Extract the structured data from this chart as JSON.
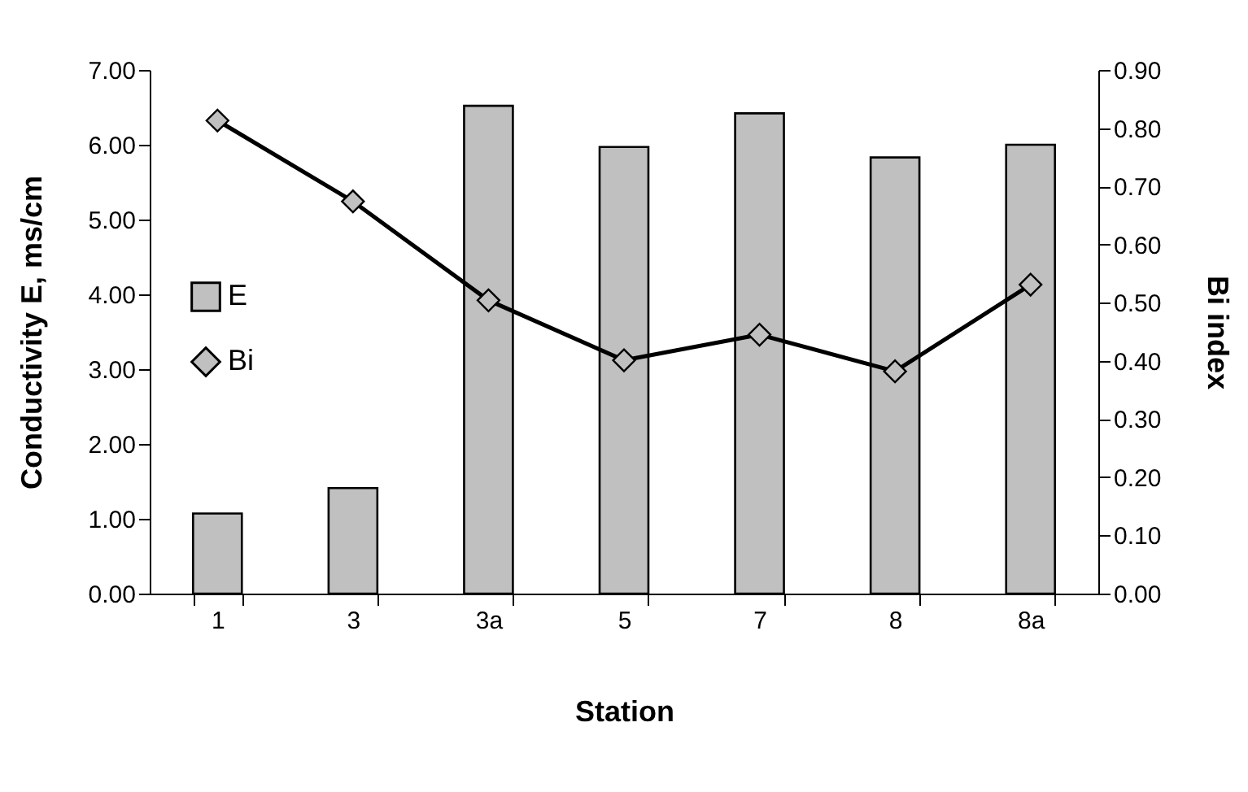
{
  "chart_data": {
    "type": "bar",
    "xlabel": "Station",
    "ylabel": "Conductivity E, ms/cm",
    "y2label": "Bi index",
    "categories": [
      "1",
      "3",
      "3a",
      "5",
      "7",
      "8",
      "8a"
    ],
    "series": [
      {
        "name": "E",
        "color": "#c0c0c0",
        "values": [
          1.07,
          1.41,
          6.52,
          5.97,
          6.42,
          5.83,
          6.0
        ]
      },
      {
        "name": "Bi",
        "type": "line",
        "axis": "y2",
        "color": "#000000",
        "marker": "diamond",
        "values": [
          0.813,
          0.674,
          0.504,
          0.401,
          0.445,
          0.382,
          0.531
        ]
      }
    ],
    "ylim": [
      0,
      7
    ],
    "yticks": [
      {
        "value": 0,
        "label": "0.00"
      },
      {
        "value": 1,
        "label": "1.00"
      },
      {
        "value": 2,
        "label": "2.00"
      },
      {
        "value": 3,
        "label": "3.00"
      },
      {
        "value": 4,
        "label": "4.00"
      },
      {
        "value": 5,
        "label": "5.00"
      },
      {
        "value": 6,
        "label": "6.00"
      },
      {
        "value": 7,
        "label": "7.00"
      }
    ],
    "y2lim": [
      0,
      0.9
    ],
    "y2ticks": [
      {
        "value": 0,
        "label": "0.00"
      },
      {
        "value": 0.1,
        "label": "0.10"
      },
      {
        "value": 0.2,
        "label": "0.20"
      },
      {
        "value": 0.3,
        "label": "0.30"
      },
      {
        "value": 0.4,
        "label": "0.40"
      },
      {
        "value": 0.5,
        "label": "0.50"
      },
      {
        "value": 0.6,
        "label": "0.60"
      },
      {
        "value": 0.7,
        "label": "0.70"
      },
      {
        "value": 0.8,
        "label": "0.80"
      },
      {
        "value": 0.9,
        "label": "0.90"
      }
    ],
    "grid": false,
    "legend": "left"
  }
}
